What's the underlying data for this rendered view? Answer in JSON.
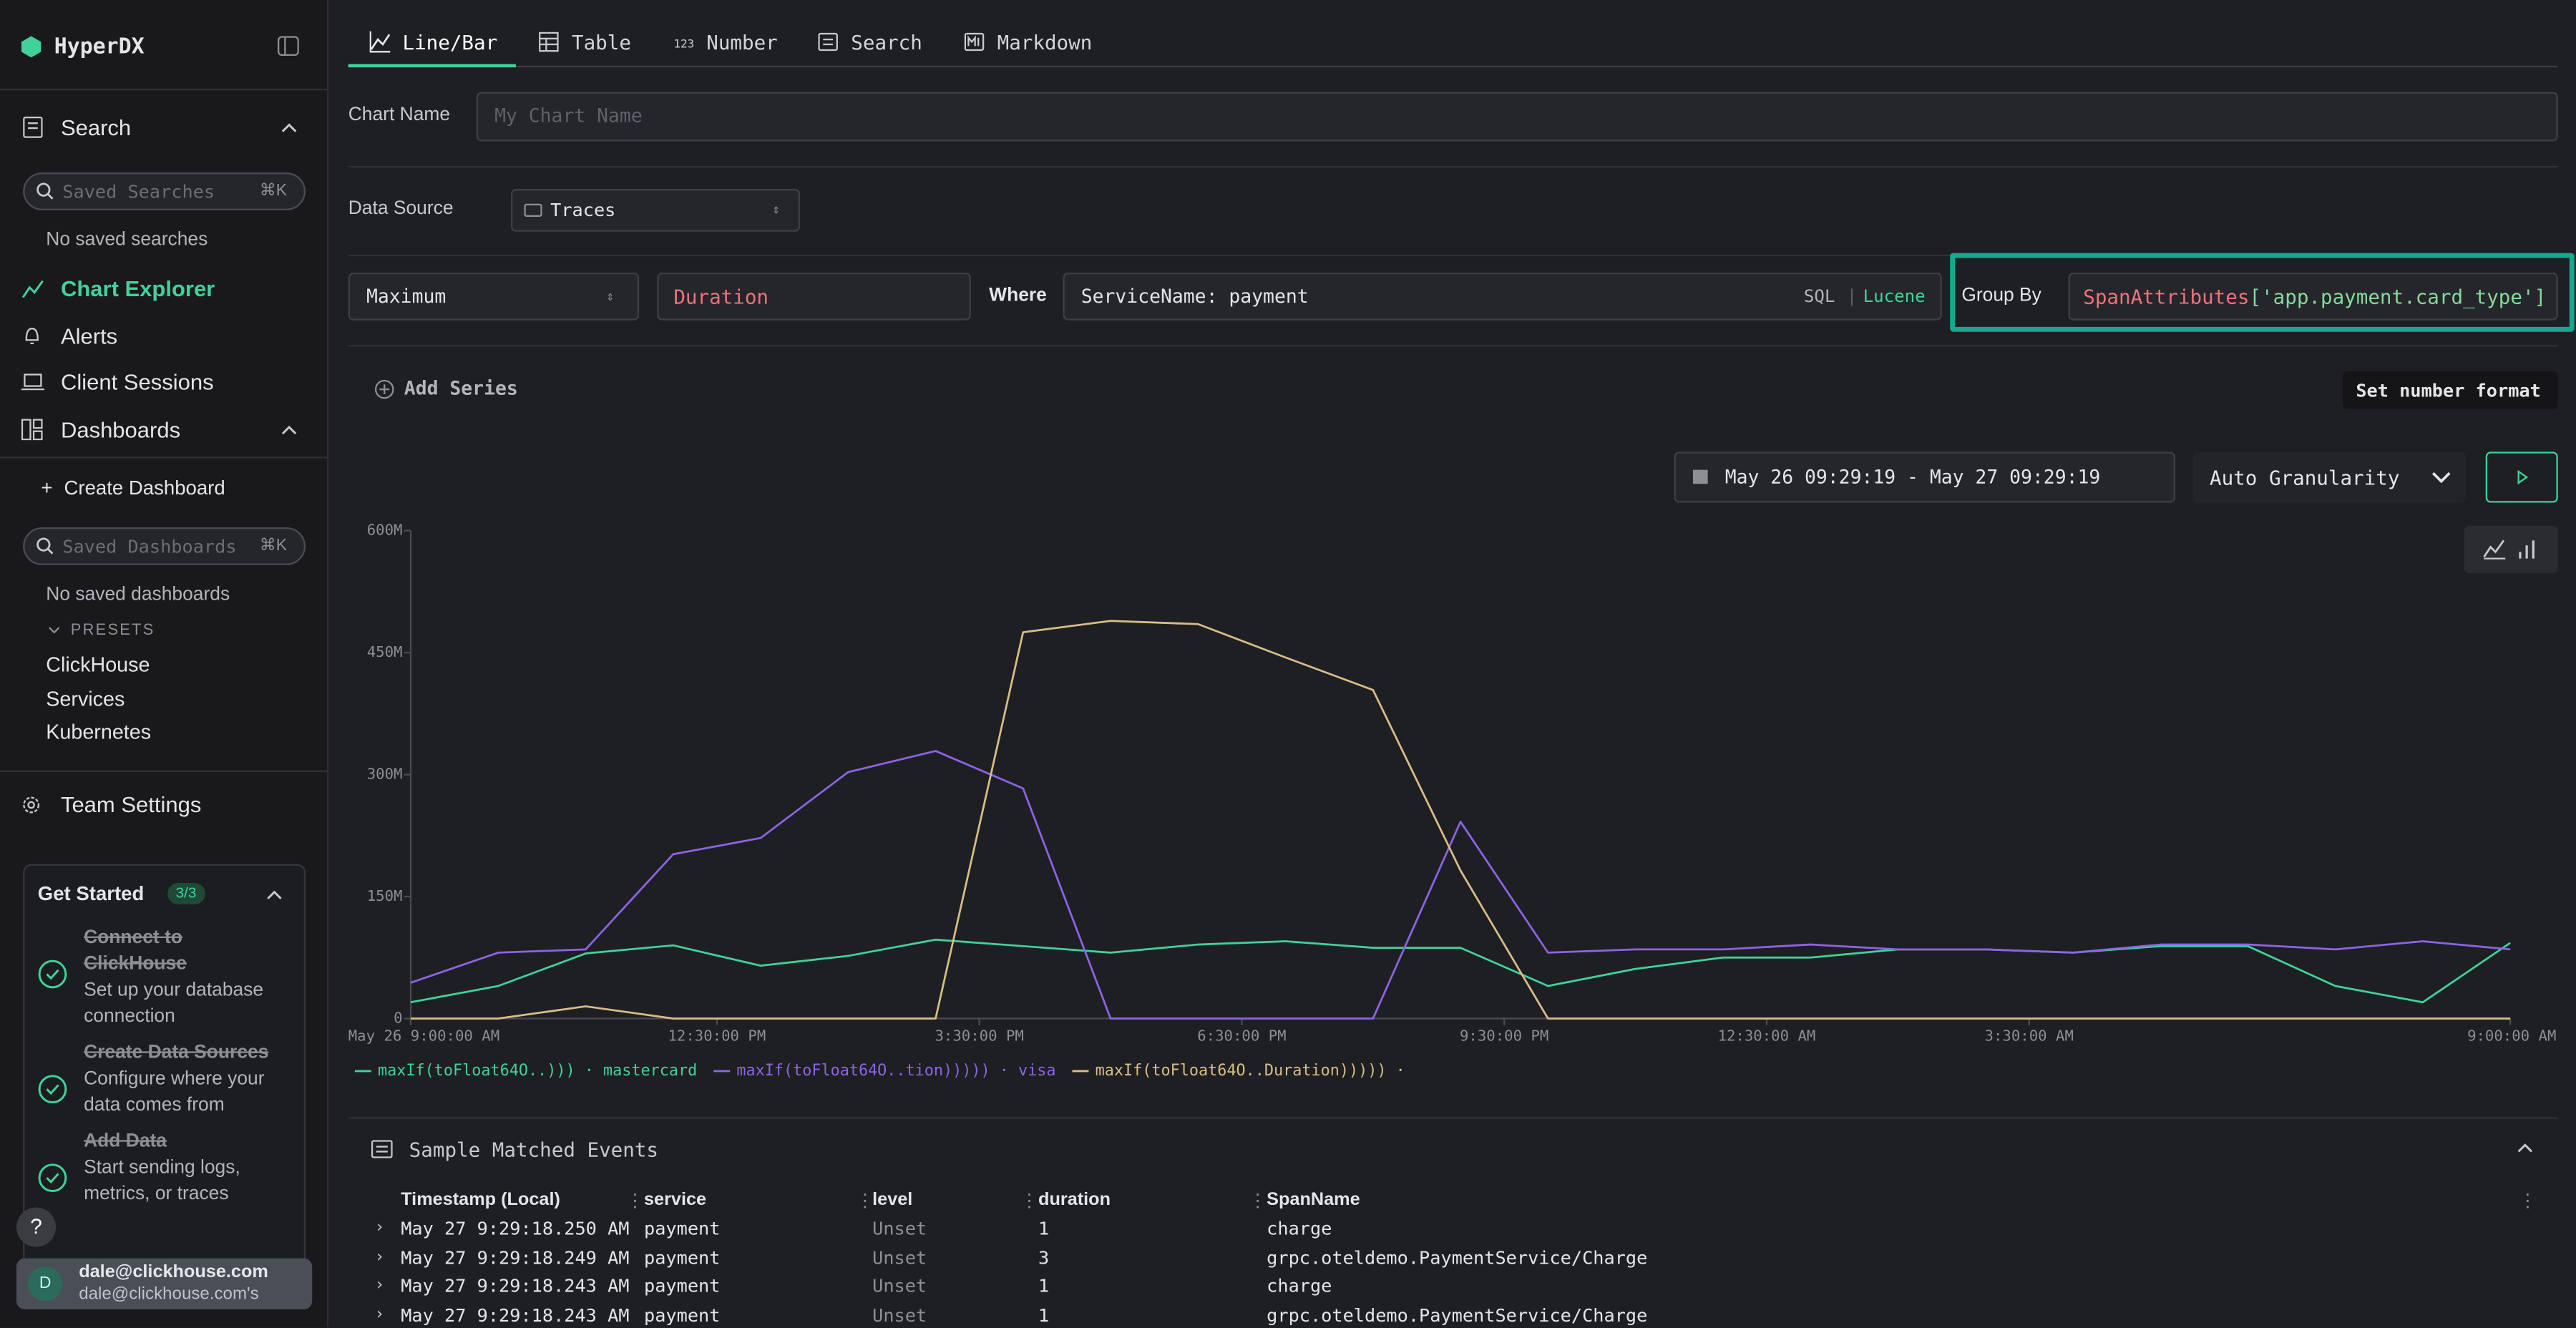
{
  "sidebar": {
    "brand": "HyperDX",
    "search_section": "Search",
    "saved_searches_placeholder": "Saved Searches",
    "search_shortcut": "⌘K",
    "no_saved_searches": "No saved searches",
    "nav": [
      "Chart Explorer",
      "Alerts",
      "Client Sessions",
      "Dashboards"
    ],
    "create_dashboard": "Create Dashboard",
    "saved_dashboards_placeholder": "Saved Dashboards",
    "dashboards_shortcut": "⌘K",
    "no_saved_dashboards": "No saved dashboards",
    "presets_label": "PRESETS",
    "presets": [
      "ClickHouse",
      "Services",
      "Kubernetes"
    ],
    "team_settings": "Team Settings",
    "get_started": {
      "title": "Get Started",
      "progress": "3/3",
      "steps": [
        {
          "title": "Connect to ClickHouse",
          "description": "Set up your database connection"
        },
        {
          "title": "Create Data Sources",
          "description": "Configure where your data comes from"
        },
        {
          "title": "Add Data",
          "description": "Start sending logs, metrics, or traces"
        }
      ]
    },
    "help": "?",
    "user": {
      "initial": "D",
      "name": "dale@clickhouse.com",
      "team": "dale@clickhouse.com's"
    }
  },
  "tabs": [
    "Line/Bar",
    "Table",
    "Number",
    "Search",
    "Markdown"
  ],
  "form": {
    "chart_name_label": "Chart Name",
    "chart_name_placeholder": "My Chart Name",
    "data_source_label": "Data Source",
    "data_source": "Traces",
    "aggregation": "Maximum",
    "field": "Duration",
    "where_label": "Where",
    "where": "ServiceName: payment",
    "sql": "SQL",
    "lucene": "Lucene",
    "group_by_label": "Group By",
    "group_by_function": "SpanAttributes",
    "group_by_argument": "['app.payment.card_type']",
    "add_series": "Add Series",
    "number_format": "Set number format",
    "date_range": "May 26 09:29:19 - May 27 09:29:19",
    "granularity": "Auto Granularity"
  },
  "chart_data": {
    "type": "line",
    "x": [
      0,
      1,
      2,
      3,
      4,
      5,
      6,
      7,
      8,
      9,
      10,
      11,
      12,
      13,
      14,
      15,
      16,
      17,
      18,
      19,
      20,
      21,
      22,
      23,
      24
    ],
    "xlim": [
      0,
      24
    ],
    "xticks": [
      {
        "value": 0,
        "label": "May 26 9:00:00 AM"
      },
      {
        "value": 3.5,
        "label": "12:30:00 PM"
      },
      {
        "value": 6.5,
        "label": "3:30:00 PM"
      },
      {
        "value": 9.5,
        "label": "6:30:00 PM"
      },
      {
        "value": 12.5,
        "label": "9:30:00 PM"
      },
      {
        "value": 15.5,
        "label": "12:30:00 AM"
      },
      {
        "value": 18.5,
        "label": "3:30:00 AM"
      },
      {
        "value": 24,
        "label": "9:00:00 AM"
      }
    ],
    "ylim": [
      0,
      600000000
    ],
    "yticks": [
      0,
      {
        "value": 150000000,
        "label": "150M"
      },
      {
        "value": 300000000,
        "label": "300M"
      },
      {
        "value": 450000000,
        "label": "450M"
      },
      {
        "value": 600000000,
        "label": "600M"
      }
    ],
    "series": [
      {
        "name": "maxIf(toFloat64O..))) · mastercard",
        "color": "#3fd39a",
        "values": [
          20000000,
          40000000,
          80000000,
          90000000,
          65000000,
          77000000,
          97000000,
          89000000,
          81000000,
          91000000,
          95000000,
          87000000,
          87000000,
          40000000,
          61000000,
          75000000,
          75000000,
          85000000,
          85000000,
          81000000,
          89000000,
          89000000,
          40000000,
          20000000,
          93000000
        ]
      },
      {
        "name": "maxIf(toFloat64O..tion))))) · visa",
        "color": "#8d63e6",
        "values": [
          44000000,
          81000000,
          85000000,
          202000000,
          222000000,
          303000000,
          329000000,
          283000000,
          0,
          0,
          0,
          0,
          242000000,
          81000000,
          85000000,
          85000000,
          91000000,
          85000000,
          85000000,
          81000000,
          91000000,
          91000000,
          85000000,
          95000000,
          85000000
        ]
      },
      {
        "name": "maxIf(toFloat64O..Duration))))) ·",
        "color": "#d9bd86",
        "values": [
          0,
          0,
          15000000,
          0,
          0,
          0,
          0,
          475000000,
          489000000,
          485000000,
          444000000,
          404000000,
          182000000,
          0,
          0,
          0,
          0,
          0,
          0,
          0,
          0,
          0,
          0,
          0,
          0
        ]
      }
    ]
  },
  "events": {
    "title": "Sample Matched Events",
    "columns": [
      "Timestamp (Local)",
      "service",
      "level",
      "duration",
      "SpanName"
    ],
    "rows": [
      [
        "May 27 9:29:18.250 AM",
        "payment",
        "Unset",
        1,
        "charge"
      ],
      [
        "May 27 9:29:18.249 AM",
        "payment",
        "Unset",
        3,
        "grpc.oteldemo.PaymentService/Charge"
      ],
      [
        "May 27 9:29:18.243 AM",
        "payment",
        "Unset",
        1,
        "charge"
      ],
      [
        "May 27 9:29:18.243 AM",
        "payment",
        "Unset",
        1,
        "grpc.oteldemo.PaymentService/Charge"
      ]
    ]
  }
}
